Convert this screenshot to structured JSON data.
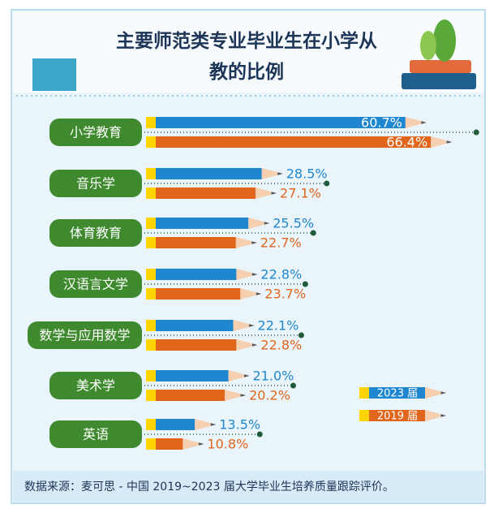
{
  "chart_data": {
    "type": "bar",
    "orientation": "horizontal",
    "title": "主要师范类专业毕业生在小学从教的比例",
    "categories": [
      "小学教育",
      "音乐学",
      "体育教育",
      "汉语言文学",
      "数学与应用数学",
      "美术学",
      "英语"
    ],
    "series": [
      {
        "name": "2023 届",
        "color": "#1f87cf",
        "values": [
          60.7,
          28.5,
          25.5,
          22.8,
          22.1,
          21.0,
          13.5
        ],
        "value_labels": [
          "60.7%",
          "28.5%",
          "25.5%",
          "22.8%",
          "22.1%",
          "21.0%",
          "13.5%"
        ]
      },
      {
        "name": "2019 届",
        "color": "#e0661c",
        "values": [
          66.4,
          27.1,
          22.7,
          23.7,
          22.8,
          20.2,
          10.8
        ],
        "value_labels": [
          "66.4%",
          "27.1%",
          "22.7%",
          "23.7%",
          "22.8%",
          "20.2%",
          "10.8%"
        ]
      }
    ],
    "source": "数据来源：麦可思 - 中国 2019~2023 届大学毕业生培养质量跟踪评价。"
  }
}
